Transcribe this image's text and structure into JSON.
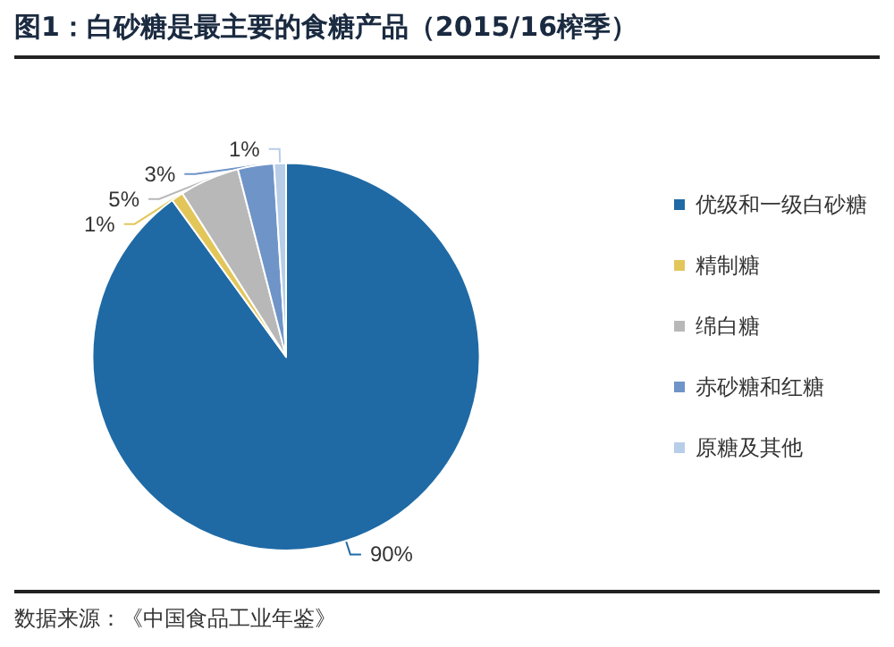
{
  "chart_data": {
    "type": "pie",
    "title": "图1：白砂糖是最主要的食糖产品（2015/16榨季）",
    "categories": [
      "优级和一级白砂糖",
      "精制糖",
      "绵白糖",
      "赤砂糖和红糖",
      "原糖及其他"
    ],
    "values": [
      90,
      1,
      5,
      3,
      1
    ],
    "colors": [
      "#1f6aa5",
      "#e3c65a",
      "#b8b8b8",
      "#6f94c8",
      "#b8cde8"
    ],
    "value_labels": [
      "90%",
      "1%",
      "5%",
      "3%",
      "1%"
    ],
    "legend": "right",
    "annotations": [
      "数据来源：《中国食品工业年鉴》"
    ]
  }
}
